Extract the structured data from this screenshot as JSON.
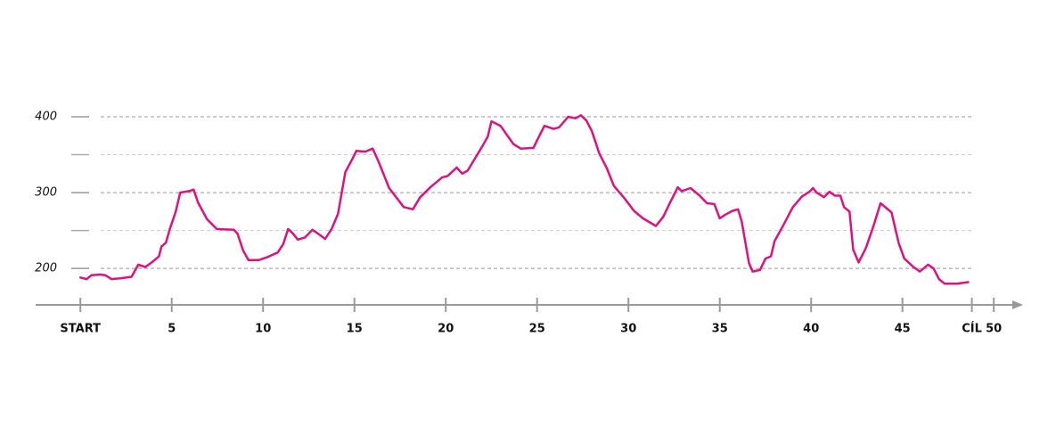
{
  "chart_data": {
    "type": "line",
    "x": [
      0,
      0.34,
      0.6,
      1.07,
      1.37,
      1.7,
      2.2,
      2.8,
      3.17,
      3.56,
      3.9,
      4.3,
      4.44,
      4.68,
      4.88,
      5.22,
      5.46,
      5.7,
      5.95,
      6.2,
      6.44,
      6.93,
      7.46,
      8.4,
      8.6,
      8.9,
      9.2,
      9.76,
      10.24,
      10.8,
      11.1,
      11.37,
      11.6,
      11.9,
      12.3,
      12.7,
      13.0,
      13.4,
      13.75,
      14.1,
      14.5,
      14.9,
      15.1,
      15.6,
      16.0,
      16.3,
      16.9,
      17.7,
      18.2,
      18.6,
      19.2,
      19.8,
      20.1,
      20.6,
      20.9,
      21.2,
      22.0,
      22.3,
      22.5,
      23.0,
      23.7,
      24.1,
      24.8,
      25.0,
      25.4,
      25.9,
      26.2,
      26.7,
      27.1,
      27.4,
      27.7,
      28.0,
      28.4,
      28.8,
      29.2,
      29.8,
      30.3,
      30.8,
      31.5,
      31.9,
      32.3,
      32.7,
      32.9,
      33.4,
      33.9,
      34.3,
      34.7,
      35.0,
      35.3,
      35.7,
      36.0,
      36.2,
      36.6,
      36.8,
      37.2,
      37.5,
      37.8,
      38.0,
      38.5,
      39.0,
      39.5,
      39.9,
      40.1,
      40.3,
      40.7,
      41.0,
      41.3,
      41.6,
      41.8,
      42.1,
      42.3,
      42.6,
      43.0,
      43.4,
      43.8,
      44.1,
      44.4,
      44.8,
      45.1,
      45.6,
      45.95,
      46.4,
      46.7,
      47.0,
      47.3,
      48.0,
      48.6
    ],
    "series": [
      {
        "color": "#e0117f",
        "values": [
          188,
          186,
          191,
          192,
          191,
          186,
          187,
          189,
          205,
          202,
          208,
          216,
          229,
          234,
          251,
          275,
          300,
          301,
          302,
          304,
          287,
          265,
          252,
          251,
          246,
          224,
          211,
          211,
          215,
          221,
          232,
          252,
          247,
          238,
          241,
          251,
          246,
          239,
          252,
          272,
          327,
          345,
          355,
          354,
          358,
          342,
          306,
          281,
          278,
          294,
          308,
          320,
          322,
          333,
          325,
          329,
          361,
          374,
          394,
          388,
          364,
          358,
          359,
          369,
          388,
          384,
          386,
          400,
          398,
          402,
          395,
          381,
          352,
          333,
          309,
          292,
          276,
          266,
          256,
          268,
          288,
          307,
          302,
          306,
          296,
          286,
          285,
          266,
          271,
          276,
          278,
          262,
          207,
          196,
          198,
          213,
          216,
          236,
          258,
          281,
          295,
          301,
          306,
          300,
          294,
          301,
          296,
          296,
          281,
          275,
          225,
          208,
          227,
          255,
          286,
          280,
          274,
          233,
          213,
          202,
          196,
          205,
          200,
          186,
          180,
          180,
          182
        ]
      }
    ],
    "xlim": [
      -2.45,
      51.6
    ],
    "xticks": [
      {
        "value": 0,
        "label": "START"
      },
      5,
      10,
      15,
      20,
      25,
      30,
      35,
      40,
      45,
      {
        "value": 48.8,
        "label": "CÍL"
      },
      50
    ],
    "ylim": [
      152,
      420
    ],
    "yticks": [
      200,
      300,
      400
    ],
    "yticks_minor": [
      250,
      350
    ],
    "grid": true
  }
}
